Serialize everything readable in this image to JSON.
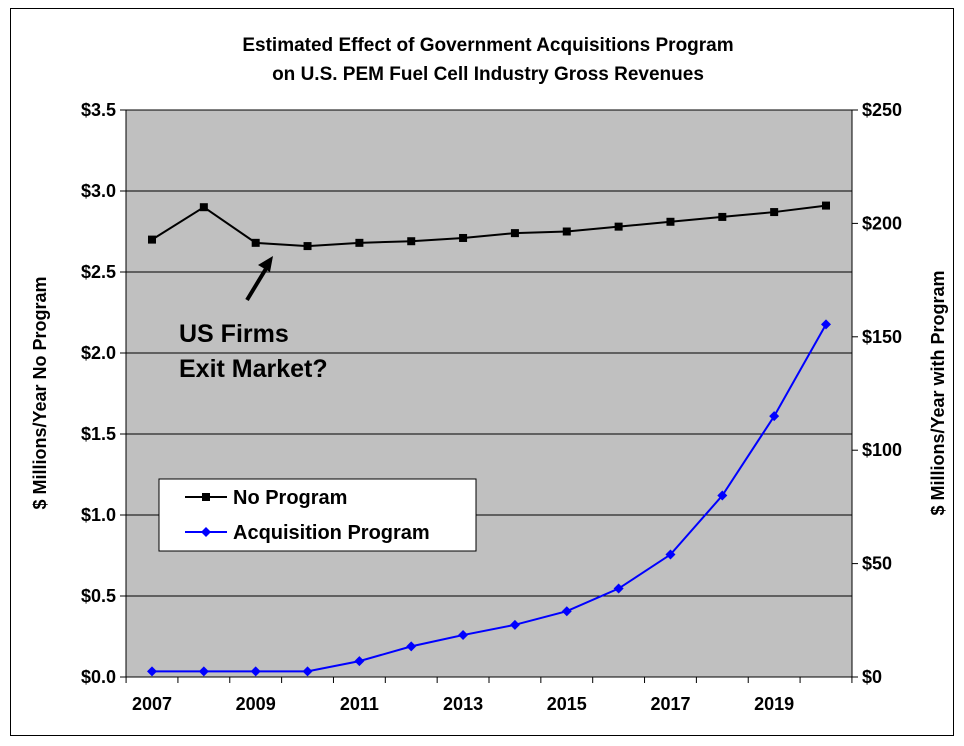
{
  "chart_data": {
    "type": "line",
    "title": [
      "Estimated Effect of Government Acquisitions Program",
      "on U.S. PEM Fuel Cell Industry Gross Revenues"
    ],
    "x": [
      2007,
      2008,
      2009,
      2010,
      2011,
      2012,
      2013,
      2014,
      2015,
      2016,
      2017,
      2018,
      2019,
      2020
    ],
    "x_tick_labels": [
      "2007",
      "2009",
      "2011",
      "2013",
      "2015",
      "2017",
      "2019"
    ],
    "ylabel_left": "$ Millions/Year No Program",
    "ylabel_right": "$ Millions/Year with Program",
    "ylim_left": [
      0,
      3.5
    ],
    "ylim_right": [
      0,
      250
    ],
    "y_left_tick_labels": [
      "$0.0",
      "$0.5",
      "$1.0",
      "$1.5",
      "$2.0",
      "$2.5",
      "$3.0",
      "$3.5"
    ],
    "y_right_tick_labels": [
      "$0",
      "$50",
      "$100",
      "$150",
      "$200",
      "$250"
    ],
    "grid": "horizontal",
    "plot_background": "#c0c0c0",
    "legend_position": "lower-left",
    "series": [
      {
        "name": "No Program",
        "axis": "left",
        "color": "#000000",
        "marker": "square",
        "values": [
          2.7,
          2.9,
          2.68,
          2.66,
          2.68,
          2.69,
          2.71,
          2.74,
          2.75,
          2.78,
          2.81,
          2.84,
          2.87,
          2.91
        ]
      },
      {
        "name": "Acquisition Program",
        "axis": "right",
        "color": "#0000ff",
        "marker": "diamond",
        "values": [
          2.5,
          2.5,
          2.5,
          2.5,
          7,
          13.5,
          18.5,
          23,
          29,
          39,
          54,
          80,
          115,
          155.5
        ]
      }
    ],
    "annotation": {
      "text": [
        "US Firms",
        "Exit Market?"
      ],
      "points_to_year": 2010
    }
  }
}
